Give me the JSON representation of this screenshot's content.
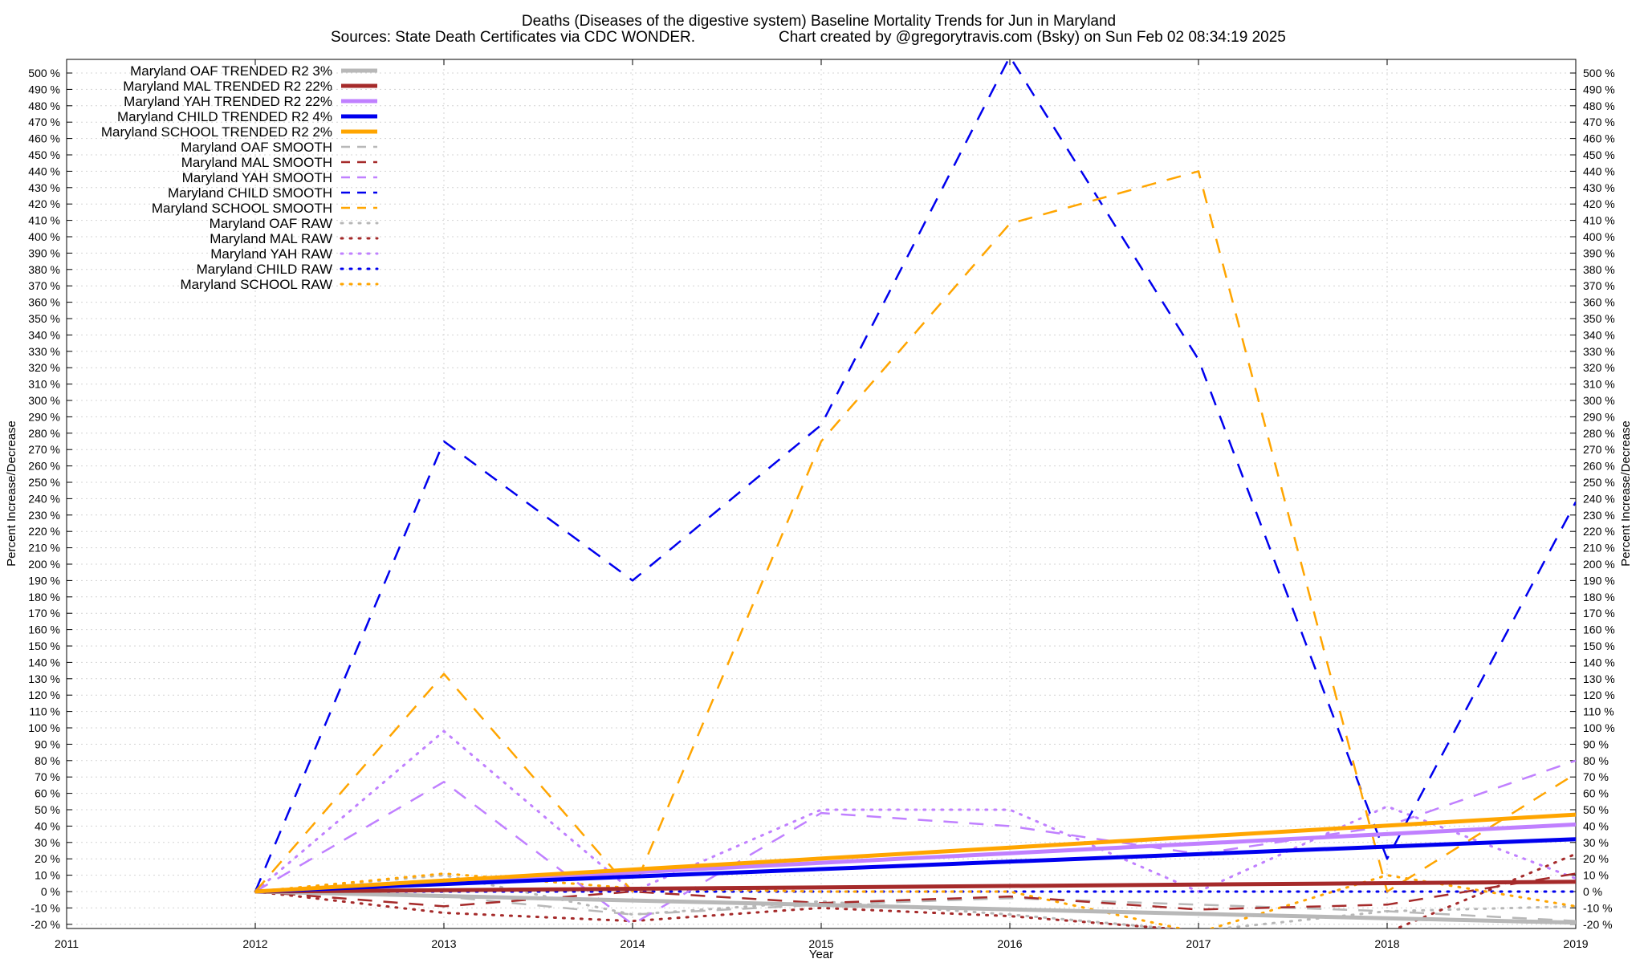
{
  "chart_data": {
    "type": "line",
    "title": "Deaths (Diseases of the digestive system)  Baseline Mortality Trends for Jun in Maryland",
    "subtitle_left": "Sources: State Death Certificates via CDC WONDER.",
    "subtitle_right": "Chart created by @gregorytravis.com (Bsky) on Sun Feb 02 08:34:19 2025",
    "xlabel": "Year",
    "ylabel_left": "Percent Increase/Decrease",
    "ylabel_right": "Percent Increase/Decrease",
    "xlim": [
      2011,
      2019
    ],
    "ylim": [
      -20,
      505
    ],
    "x_ticks": [
      2011,
      2012,
      2013,
      2014,
      2015,
      2016,
      2017,
      2018,
      2019
    ],
    "y_ticks": [
      -20,
      -10,
      0,
      10,
      20,
      30,
      40,
      50,
      60,
      70,
      80,
      90,
      100,
      110,
      120,
      130,
      140,
      150,
      160,
      170,
      180,
      190,
      200,
      210,
      220,
      230,
      240,
      250,
      260,
      270,
      280,
      290,
      300,
      310,
      320,
      330,
      340,
      350,
      360,
      370,
      380,
      390,
      400,
      410,
      420,
      430,
      440,
      450,
      460,
      470,
      480,
      490,
      500
    ],
    "y_tick_suffix": " %",
    "grid": true,
    "legend_position": "top-left",
    "series": [
      {
        "name": "Maryland OAF TRENDED R2",
        "r2": "3%",
        "style": "solid",
        "color": "#b8b8b8",
        "x": [
          2012,
          2019
        ],
        "y": [
          0,
          -19
        ]
      },
      {
        "name": "Maryland MAL TRENDED R2",
        "r2": "22%",
        "style": "solid",
        "color": "#a52a2a",
        "x": [
          2012,
          2019
        ],
        "y": [
          0,
          6
        ]
      },
      {
        "name": "Maryland YAH TRENDED R2",
        "r2": "22%",
        "style": "solid",
        "color": "#c080ff",
        "x": [
          2012,
          2019
        ],
        "y": [
          0,
          41
        ]
      },
      {
        "name": "Maryland CHILD TRENDED R2",
        "r2": "4%",
        "style": "solid",
        "color": "#0000ee",
        "x": [
          2012,
          2019
        ],
        "y": [
          0,
          32
        ]
      },
      {
        "name": "Maryland SCHOOL TRENDED R2",
        "r2": "2%",
        "style": "solid",
        "color": "#ffa500",
        "x": [
          2012,
          2019
        ],
        "y": [
          0,
          47
        ]
      },
      {
        "name": "Maryland OAF SMOOTH",
        "style": "dashed",
        "color": "#b8b8b8",
        "x": [
          2012,
          2013,
          2014,
          2015,
          2016,
          2017,
          2018,
          2019
        ],
        "y": [
          0,
          -3,
          -14,
          -8,
          -4,
          -8,
          -12,
          -18
        ]
      },
      {
        "name": "Maryland MAL SMOOTH",
        "style": "dashed",
        "color": "#a52a2a",
        "x": [
          2012,
          2013,
          2014,
          2015,
          2016,
          2017,
          2018,
          2019
        ],
        "y": [
          0,
          -9,
          0,
          -7,
          -3,
          -11,
          -8,
          11
        ]
      },
      {
        "name": "Maryland YAH SMOOTH",
        "style": "dashed",
        "color": "#c080ff",
        "x": [
          2012,
          2013,
          2014,
          2015,
          2016,
          2017,
          2018,
          2019
        ],
        "y": [
          0,
          67,
          -20,
          48,
          40,
          23,
          40,
          80
        ]
      },
      {
        "name": "Maryland CHILD SMOOTH",
        "style": "dashed",
        "color": "#0000ee",
        "x": [
          2012,
          2013,
          2014,
          2015,
          2016,
          2017,
          2018,
          2019
        ],
        "y": [
          0,
          275,
          190,
          285,
          510,
          325,
          20,
          238
        ]
      },
      {
        "name": "Maryland SCHOOL SMOOTH",
        "style": "dashed",
        "color": "#ffa500",
        "x": [
          2012,
          2013,
          2014,
          2015,
          2016,
          2017,
          2018,
          2019
        ],
        "y": [
          0,
          133,
          0,
          275,
          408,
          440,
          0,
          72
        ]
      },
      {
        "name": "Maryland OAF RAW",
        "style": "dotted",
        "color": "#b8b8b8",
        "x": [
          2012,
          2013,
          2014,
          2015,
          2016,
          2017,
          2018,
          2019
        ],
        "y": [
          0,
          10,
          -14,
          -6,
          -14,
          -24,
          -12,
          -9
        ]
      },
      {
        "name": "Maryland MAL RAW",
        "style": "dotted",
        "color": "#a52a2a",
        "x": [
          2012,
          2013,
          2014,
          2015,
          2016,
          2017,
          2018,
          2019
        ],
        "y": [
          0,
          -13,
          -18,
          -10,
          -15,
          -24,
          -25,
          23
        ]
      },
      {
        "name": "Maryland YAH RAW",
        "style": "dotted",
        "color": "#c080ff",
        "x": [
          2012,
          2013,
          2014,
          2015,
          2016,
          2017,
          2018,
          2019
        ],
        "y": [
          0,
          98,
          0,
          50,
          50,
          0,
          52,
          8
        ]
      },
      {
        "name": "Maryland CHILD RAW",
        "style": "dotted",
        "color": "#0000ee",
        "x": [
          2012,
          2013,
          2014,
          2015,
          2016,
          2017,
          2018,
          2019
        ],
        "y": [
          0,
          0,
          0,
          0,
          0,
          0,
          0,
          0
        ]
      },
      {
        "name": "Maryland SCHOOL RAW",
        "style": "dotted",
        "color": "#ffa500",
        "x": [
          2012,
          2013,
          2014,
          2015,
          2016,
          2017,
          2018,
          2019
        ],
        "y": [
          0,
          11,
          2,
          0,
          0,
          -25,
          10,
          -9
        ]
      }
    ]
  }
}
